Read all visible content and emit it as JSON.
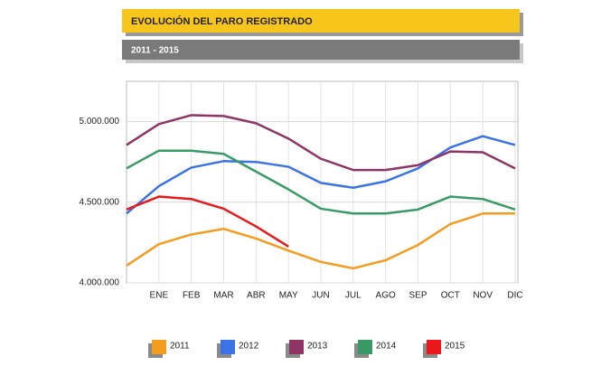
{
  "chart_data": {
    "type": "line",
    "title": "EVOLUCIÓN DEL PARO REGISTRADO",
    "subtitle": "2011 - 2015",
    "categories": [
      null,
      "ENE",
      "FEB",
      "MAR",
      "ABR",
      "MAY",
      "JUN",
      "JUL",
      "AGO",
      "SEP",
      "OCT",
      "NOV",
      "DIC"
    ],
    "series": [
      {
        "name": "2011",
        "color": "#f39c1f",
        "values": [
          4107000,
          4240000,
          4300000,
          4335000,
          4275000,
          4200000,
          4130000,
          4090000,
          4140000,
          4235000,
          4365000,
          4430000,
          4430000
        ]
      },
      {
        "name": "2012",
        "color": "#3b73e6",
        "values": [
          4430000,
          4600000,
          4715000,
          4755000,
          4750000,
          4720000,
          4620000,
          4590000,
          4630000,
          4710000,
          4840000,
          4910000,
          4855000
        ]
      },
      {
        "name": "2013",
        "color": "#8e3566",
        "values": [
          4855000,
          4985000,
          5040000,
          5035000,
          4990000,
          4895000,
          4770000,
          4700000,
          4700000,
          4730000,
          4815000,
          4810000,
          4710000
        ]
      },
      {
        "name": "2014",
        "color": "#3a9a66",
        "values": [
          4710000,
          4820000,
          4820000,
          4800000,
          4690000,
          4580000,
          4460000,
          4430000,
          4430000,
          4455000,
          4535000,
          4520000,
          4455000
        ]
      },
      {
        "name": "2015",
        "color": "#e8191b",
        "values": [
          4455000,
          4535000,
          4520000,
          4460000,
          4350000,
          4225000,
          null,
          null,
          null,
          null,
          null,
          null,
          null
        ]
      }
    ],
    "ylim": [
      4000000,
      5250000
    ],
    "yticks": [
      {
        "value": 4000000,
        "label": "4.000.000"
      },
      {
        "value": 4500000,
        "label": "4.500.000"
      },
      {
        "value": 5000000,
        "label": "5.000.000"
      }
    ],
    "grid": true
  }
}
